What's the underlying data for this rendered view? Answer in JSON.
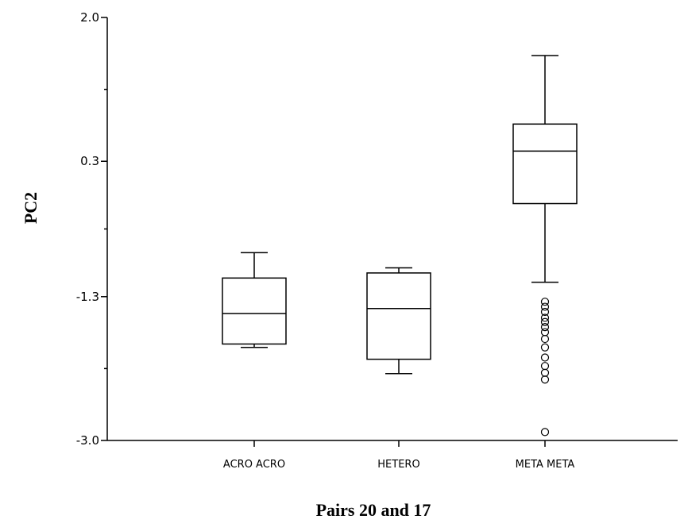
{
  "chart_data": {
    "type": "boxplot",
    "title": "",
    "xlabel": "Pairs 20 and 17",
    "ylabel": "PC2",
    "ylim": [
      -3.0,
      2.0
    ],
    "yticks": [
      2.0,
      0.3,
      -1.3,
      -3.0
    ],
    "ytick_labels": [
      "2.0",
      "0.3",
      "-1.3",
      "-3.0"
    ],
    "categories": [
      "ACRO ACRO",
      "HETERO",
      "META META"
    ],
    "boxes": [
      {
        "category": "ACRO ACRO",
        "whisker_low": -1.9,
        "q1": -1.86,
        "median": -1.5,
        "q3": -1.08,
        "whisker_high": -0.78,
        "outliers": []
      },
      {
        "category": "HETERO",
        "whisker_low": -2.21,
        "q1": -2.04,
        "median": -1.44,
        "q3": -1.02,
        "whisker_high": -0.96,
        "outliers": []
      },
      {
        "category": "META META",
        "whisker_low": -1.13,
        "q1": -0.2,
        "median": 0.42,
        "q3": 0.74,
        "whisker_high": 1.55,
        "outliers": [
          -1.36,
          -1.42,
          -1.48,
          -1.55,
          -1.6,
          -1.66,
          -1.72,
          -1.8,
          -1.9,
          -2.02,
          -2.12,
          -2.2,
          -2.28,
          -2.9
        ]
      }
    ],
    "grid": false,
    "legend": "none"
  }
}
